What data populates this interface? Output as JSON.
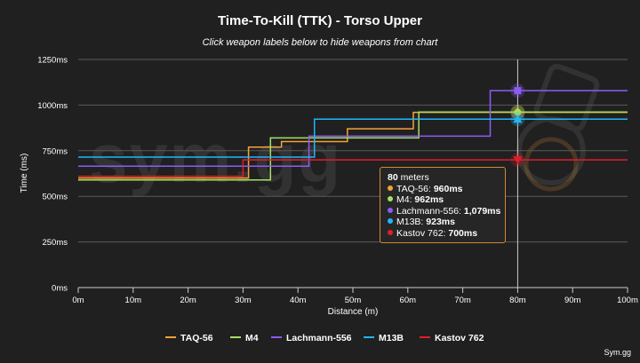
{
  "chart_data": {
    "type": "line",
    "title": "Time-To-Kill (TTK) - Torso Upper",
    "subtitle": "Click weapon labels below to hide weapons from chart",
    "xlabel": "Distance (m)",
    "ylabel": "Time (ms)",
    "xlim": [
      0,
      100
    ],
    "ylim": [
      0,
      1250
    ],
    "x_ticks": [
      0,
      10,
      20,
      30,
      40,
      50,
      60,
      70,
      80,
      90,
      100
    ],
    "x_tick_labels": [
      "0m",
      "10m",
      "20m",
      "30m",
      "40m",
      "50m",
      "60m",
      "70m",
      "80m",
      "90m",
      "100m"
    ],
    "y_ticks": [
      0,
      250,
      500,
      750,
      1000,
      1250
    ],
    "y_tick_labels": [
      "0ms",
      "250ms",
      "500ms",
      "750ms",
      "1000ms",
      "1250ms"
    ],
    "grid": "horizontal",
    "legend_position": "bottom",
    "series": [
      {
        "name": "TAQ-56",
        "color": "#f7a23a",
        "x": [
          0,
          31,
          31,
          37,
          37,
          49,
          49,
          61,
          61,
          100
        ],
        "values": [
          600,
          600,
          770,
          770,
          800,
          800,
          870,
          870,
          960,
          960
        ]
      },
      {
        "name": "M4",
        "color": "#a5e063",
        "x": [
          0,
          35,
          35,
          38,
          38,
          53,
          53,
          62,
          62,
          100
        ],
        "values": [
          590,
          590,
          820,
          820,
          820,
          820,
          820,
          820,
          962,
          962
        ]
      },
      {
        "name": "Lachmann-556",
        "color": "#8b5cf6",
        "x": [
          0,
          36,
          36,
          42,
          42,
          75,
          75,
          100
        ],
        "values": [
          665,
          665,
          665,
          665,
          830,
          830,
          1079,
          1079
        ]
      },
      {
        "name": "M13B",
        "color": "#1fb6ff",
        "x": [
          0,
          43,
          43,
          100
        ],
        "values": [
          715,
          715,
          923,
          923
        ]
      },
      {
        "name": "Kastov 762",
        "color": "#e11d2a",
        "x": [
          0,
          30,
          30,
          100
        ],
        "values": [
          610,
          610,
          700,
          700
        ]
      }
    ],
    "tooltip": {
      "distance_value": "80",
      "distance_unit": "meters",
      "entries": [
        {
          "label": "TAQ-56:",
          "value": "960ms",
          "color": "#f7a23a"
        },
        {
          "label": "M4:",
          "value": "962ms",
          "color": "#a5e063"
        },
        {
          "label": "Lachmann-556:",
          "value": "1,079ms",
          "color": "#8b5cf6"
        },
        {
          "label": "M13B:",
          "value": "923ms",
          "color": "#1fb6ff"
        },
        {
          "label": "Kastov 762:",
          "value": "700ms",
          "color": "#e11d2a"
        }
      ]
    },
    "crosshair_x": 80,
    "watermark": "sym.gg",
    "credit": "Sym.gg"
  }
}
